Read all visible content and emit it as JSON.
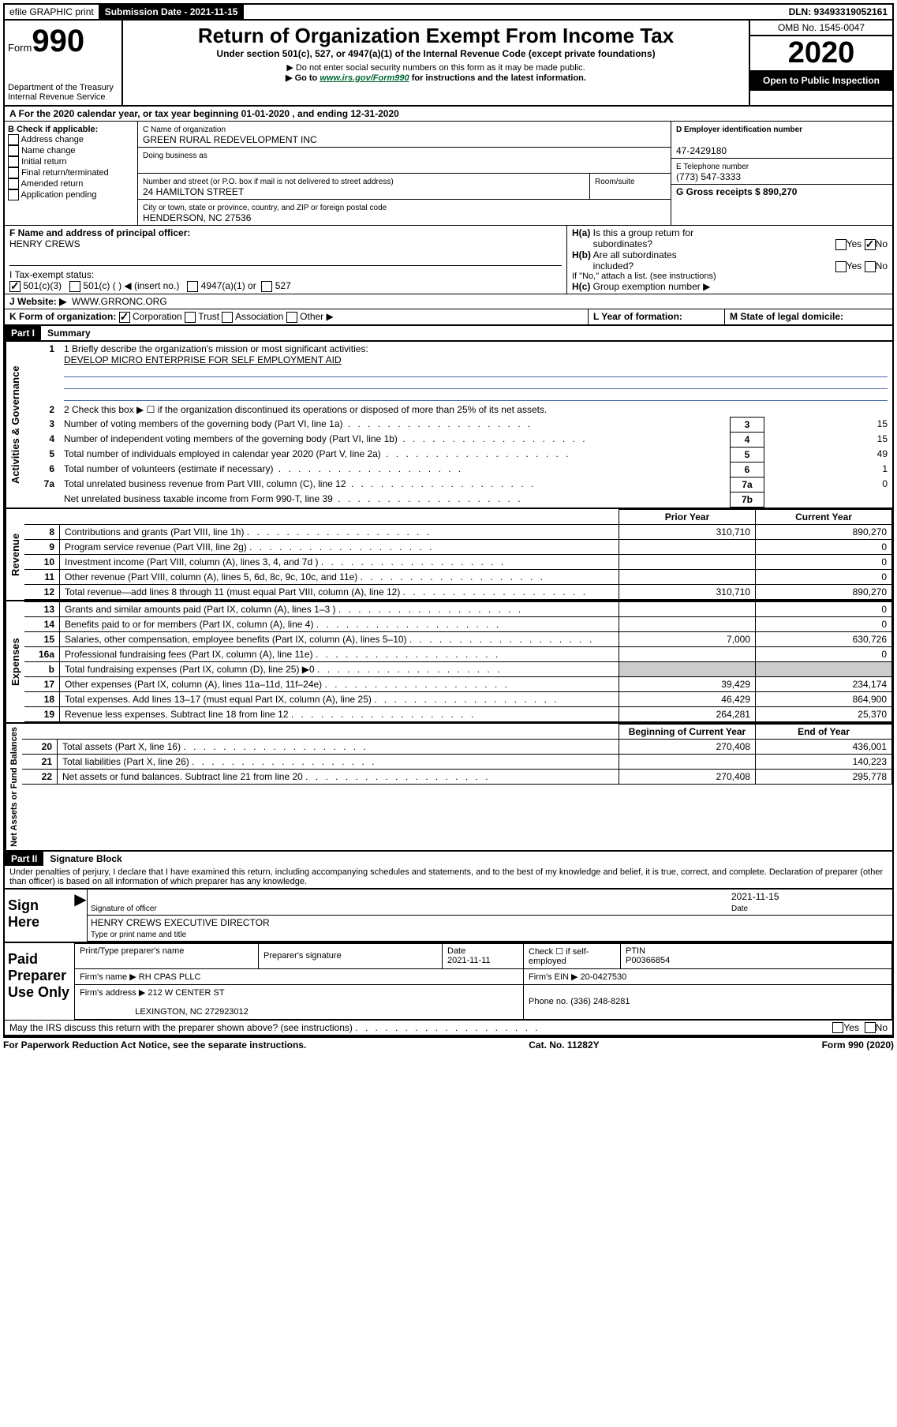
{
  "topbar": {
    "efile": "efile GRAPHIC print",
    "submission_label": "Submission Date - 2021-11-15",
    "dln": "DLN: 93493319052161"
  },
  "header": {
    "form_word": "Form",
    "form_num": "990",
    "dept": "Department of the Treasury",
    "irs": "Internal Revenue Service",
    "title": "Return of Organization Exempt From Income Tax",
    "subtitle": "Under section 501(c), 527, or 4947(a)(1) of the Internal Revenue Code (except private foundations)",
    "note1": "▶ Do not enter social security numbers on this form as it may be made public.",
    "note2_prefix": "▶ Go to ",
    "note2_link": "www.irs.gov/Form990",
    "note2_suffix": " for instructions and the latest information.",
    "omb": "OMB No. 1545-0047",
    "year": "2020",
    "open": "Open to Public Inspection"
  },
  "row_a": "A For the 2020 calendar year, or tax year beginning 01-01-2020   , and ending 12-31-2020",
  "col_b": {
    "label": "B Check if applicable:",
    "items": [
      "Address change",
      "Name change",
      "Initial return",
      "Final return/terminated",
      "Amended return",
      "Application pending"
    ]
  },
  "col_c": {
    "name_label": "C Name of organization",
    "name": "GREEN RURAL REDEVELOPMENT INC",
    "dba_label": "Doing business as",
    "street_label": "Number and street (or P.O. box if mail is not delivered to street address)",
    "room_label": "Room/suite",
    "street": "24 HAMILTON STREET",
    "city_label": "City or town, state or province, country, and ZIP or foreign postal code",
    "city": "HENDERSON, NC  27536"
  },
  "col_d": {
    "d_label": "D Employer identification number",
    "d_val": "47-2429180",
    "e_label": "E Telephone number",
    "e_val": "(773) 547-3333",
    "g_label": "G Gross receipts $ 890,270"
  },
  "row_f": {
    "f_label": "F Name and address of principal officer:",
    "f_val": "HENRY CREWS",
    "ha_label": "H(a)  Is this a group return for subordinates?",
    "ha_yes": "Yes",
    "ha_no": "No",
    "hb_label": "H(b)  Are all subordinates included?",
    "hb_yes": "Yes",
    "hb_no": "No",
    "hb_note": "If \"No,\" attach a list. (see instructions)",
    "hc_label": "H(c)  Group exemption number ▶"
  },
  "row_i": {
    "label": "I   Tax-exempt status:",
    "opts": [
      "501(c)(3)",
      "501(c) (  ) ◀ (insert no.)",
      "4947(a)(1) or",
      "527"
    ]
  },
  "row_j": {
    "label": "J   Website: ▶",
    "val": "WWW.GRRONC.ORG"
  },
  "row_k": {
    "label": "K Form of organization:",
    "opts": [
      "Corporation",
      "Trust",
      "Association",
      "Other ▶"
    ],
    "l_label": "L Year of formation:",
    "m_label": "M State of legal domicile:"
  },
  "part1": {
    "header": "Part I",
    "title": "Summary",
    "sections": {
      "gov": "Activities & Governance",
      "rev": "Revenue",
      "exp": "Expenses",
      "net": "Net Assets or Fund Balances"
    },
    "line1_label": "1  Briefly describe the organization's mission or most significant activities:",
    "line1_val": "DEVELOP MICRO ENTERPRISE FOR SELF EMPLOYMENT AID",
    "line2": "2   Check this box ▶ ☐  if the organization discontinued its operations or disposed of more than 25% of its net assets.",
    "rows_gov": [
      {
        "n": "3",
        "label": "Number of voting members of the governing body (Part VI, line 1a)",
        "box": "3",
        "val": "15"
      },
      {
        "n": "4",
        "label": "Number of independent voting members of the governing body (Part VI, line 1b)",
        "box": "4",
        "val": "15"
      },
      {
        "n": "5",
        "label": "Total number of individuals employed in calendar year 2020 (Part V, line 2a)",
        "box": "5",
        "val": "49"
      },
      {
        "n": "6",
        "label": "Total number of volunteers (estimate if necessary)",
        "box": "6",
        "val": "1"
      },
      {
        "n": "7a",
        "label": "Total unrelated business revenue from Part VIII, column (C), line 12",
        "box": "7a",
        "val": "0"
      },
      {
        "n": "",
        "label": "Net unrelated business taxable income from Form 990-T, line 39",
        "box": "7b",
        "val": ""
      }
    ],
    "col_headers": {
      "prior": "Prior Year",
      "current": "Current Year",
      "begin": "Beginning of Current Year",
      "end": "End of Year"
    },
    "rows_rev": [
      {
        "n": "8",
        "label": "Contributions and grants (Part VIII, line 1h)",
        "p": "310,710",
        "c": "890,270"
      },
      {
        "n": "9",
        "label": "Program service revenue (Part VIII, line 2g)",
        "p": "",
        "c": "0"
      },
      {
        "n": "10",
        "label": "Investment income (Part VIII, column (A), lines 3, 4, and 7d )",
        "p": "",
        "c": "0"
      },
      {
        "n": "11",
        "label": "Other revenue (Part VIII, column (A), lines 5, 6d, 8c, 9c, 10c, and 11e)",
        "p": "",
        "c": "0"
      },
      {
        "n": "12",
        "label": "Total revenue—add lines 8 through 11 (must equal Part VIII, column (A), line 12)",
        "p": "310,710",
        "c": "890,270"
      }
    ],
    "rows_exp": [
      {
        "n": "13",
        "label": "Grants and similar amounts paid (Part IX, column (A), lines 1–3 )",
        "p": "",
        "c": "0"
      },
      {
        "n": "14",
        "label": "Benefits paid to or for members (Part IX, column (A), line 4)",
        "p": "",
        "c": "0"
      },
      {
        "n": "15",
        "label": "Salaries, other compensation, employee benefits (Part IX, column (A), lines 5–10)",
        "p": "7,000",
        "c": "630,726"
      },
      {
        "n": "16a",
        "label": "Professional fundraising fees (Part IX, column (A), line 11e)",
        "p": "",
        "c": "0"
      },
      {
        "n": "b",
        "label": "Total fundraising expenses (Part IX, column (D), line 25) ▶0",
        "p": "shaded",
        "c": "shaded"
      },
      {
        "n": "17",
        "label": "Other expenses (Part IX, column (A), lines 11a–11d, 11f–24e)",
        "p": "39,429",
        "c": "234,174"
      },
      {
        "n": "18",
        "label": "Total expenses. Add lines 13–17 (must equal Part IX, column (A), line 25)",
        "p": "46,429",
        "c": "864,900"
      },
      {
        "n": "19",
        "label": "Revenue less expenses. Subtract line 18 from line 12",
        "p": "264,281",
        "c": "25,370"
      }
    ],
    "rows_net": [
      {
        "n": "20",
        "label": "Total assets (Part X, line 16)",
        "p": "270,408",
        "c": "436,001"
      },
      {
        "n": "21",
        "label": "Total liabilities (Part X, line 26)",
        "p": "",
        "c": "140,223"
      },
      {
        "n": "22",
        "label": "Net assets or fund balances. Subtract line 21 from line 20",
        "p": "270,408",
        "c": "295,778"
      }
    ]
  },
  "part2": {
    "header": "Part II",
    "title": "Signature Block",
    "penalty": "Under penalties of perjury, I declare that I have examined this return, including accompanying schedules and statements, and to the best of my knowledge and belief, it is true, correct, and complete. Declaration of preparer (other than officer) is based on all information of which preparer has any knowledge."
  },
  "sign": {
    "label": "Sign Here",
    "sig_label": "Signature of officer",
    "date_label": "Date",
    "date_val": "2021-11-15",
    "name": "HENRY CREWS  EXECUTIVE DIRECTOR",
    "name_label": "Type or print name and title"
  },
  "prep": {
    "label": "Paid Preparer Use Only",
    "h1": "Print/Type preparer's name",
    "h2": "Preparer's signature",
    "h3": "Date",
    "h3v": "2021-11-11",
    "h4": "Check ☐ if self-employed",
    "h5": "PTIN",
    "h5v": "P00366854",
    "firm_label": "Firm's name      ▶",
    "firm": "RH CPAS PLLC",
    "ein_label": "Firm's EIN ▶",
    "ein": "20-0427530",
    "addr_label": "Firm's address ▶",
    "addr1": "212 W CENTER ST",
    "addr2": "LEXINGTON, NC  272923012",
    "phone_label": "Phone no.",
    "phone": "(336) 248-8281"
  },
  "discuss": "May the IRS discuss this return with the preparer shown above? (see instructions)",
  "discuss_yes": "Yes",
  "discuss_no": "No",
  "footer": {
    "left": "For Paperwork Reduction Act Notice, see the separate instructions.",
    "center": "Cat. No. 11282Y",
    "right": "Form 990 (2020)"
  }
}
